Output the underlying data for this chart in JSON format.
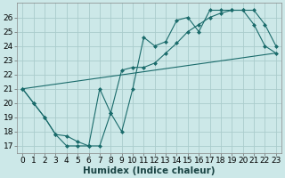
{
  "xlabel": "Humidex (Indice chaleur)",
  "background_color": "#cce8e8",
  "grid_color": "#aacccc",
  "line_color": "#1a6b6b",
  "xlim": [
    -0.5,
    23.5
  ],
  "ylim": [
    16.5,
    27.0
  ],
  "xticks": [
    0,
    1,
    2,
    3,
    4,
    5,
    6,
    7,
    8,
    9,
    10,
    11,
    12,
    13,
    14,
    15,
    16,
    17,
    18,
    19,
    20,
    21,
    22,
    23
  ],
  "yticks": [
    17,
    18,
    19,
    20,
    21,
    22,
    23,
    24,
    25,
    26
  ],
  "series1_x": [
    0,
    1,
    2,
    3,
    4,
    5,
    6,
    7,
    8,
    9,
    10,
    11,
    12,
    13,
    14,
    15,
    16,
    17,
    18,
    19,
    20,
    21,
    22,
    23
  ],
  "series1_y": [
    21.0,
    20.0,
    19.0,
    17.8,
    17.0,
    17.0,
    17.0,
    17.0,
    19.3,
    18.0,
    21.0,
    24.6,
    24.0,
    24.3,
    25.8,
    26.0,
    25.0,
    26.5,
    26.5,
    26.5,
    26.5,
    25.5,
    24.0,
    23.5
  ],
  "series2_x": [
    0,
    1,
    2,
    3,
    4,
    5,
    6,
    7,
    8,
    9,
    10,
    11,
    12,
    13,
    14,
    15,
    16,
    17,
    18,
    19,
    20,
    21,
    22,
    23
  ],
  "series2_y": [
    21.0,
    20.0,
    19.0,
    17.8,
    17.7,
    17.3,
    17.0,
    21.0,
    19.3,
    22.3,
    22.5,
    22.5,
    22.8,
    23.5,
    24.2,
    25.0,
    25.5,
    26.0,
    26.3,
    26.5,
    26.5,
    26.5,
    25.5,
    24.0
  ],
  "series3_x": [
    0,
    23
  ],
  "series3_y": [
    21.0,
    23.5
  ],
  "fontsize_xlabel": 7.5,
  "fontsize_tick": 6.5,
  "marker_size": 2.0,
  "line_width": 0.8
}
